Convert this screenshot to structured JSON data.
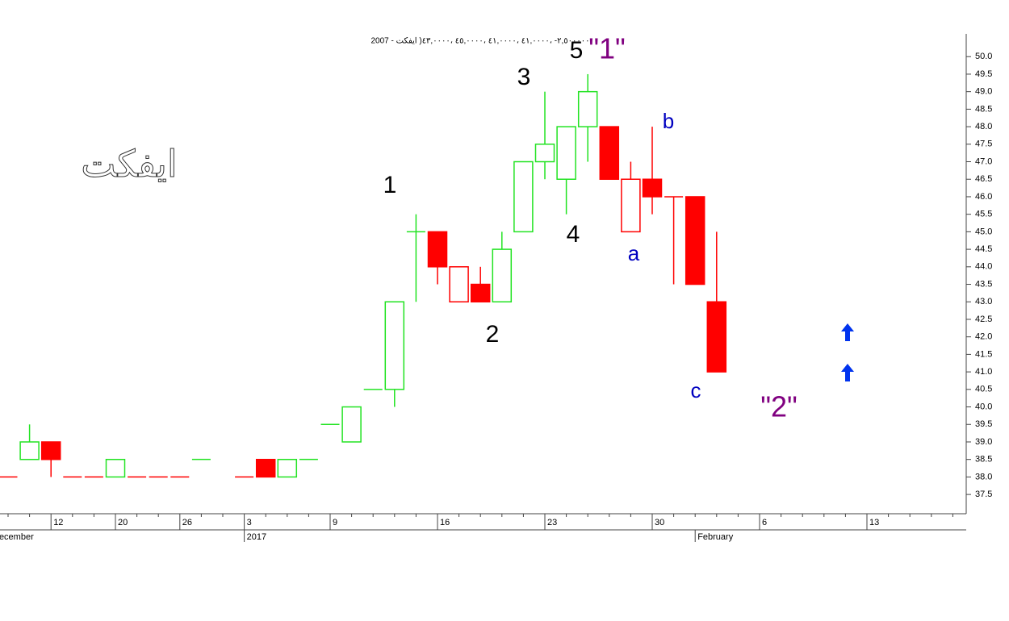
{
  "chart_data": {
    "type": "candlestick",
    "header": "2007 - ٢,٥٠٠٠٠٠- ،٤١,٠٠٠٠ ،٤١,٠٠٠٠ ،٤٥,٠٠٠٠ ،٤٣,٠٠٠٠( ايفكت",
    "logo": "ايفكت",
    "month_left": "December",
    "categories": [
      null,
      null,
      "12",
      null,
      null,
      "20",
      null,
      null,
      "26",
      null,
      null,
      "3",
      null,
      null,
      null,
      "9",
      null,
      null,
      null,
      null,
      "16",
      null,
      null,
      null,
      null,
      "23",
      null,
      null,
      null,
      null,
      "30",
      null,
      null,
      null,
      null,
      "6",
      null,
      null,
      null,
      null,
      "13",
      null,
      null,
      null,
      null
    ],
    "periods": [
      null,
      null,
      null,
      null,
      null,
      null,
      null,
      null,
      null,
      null,
      null,
      "2017",
      null,
      null,
      null,
      null,
      null,
      null,
      null,
      null,
      null,
      null,
      null,
      null,
      null,
      null,
      null,
      null,
      null,
      null,
      null,
      null,
      "February",
      null,
      null,
      null,
      null,
      null,
      null,
      null,
      null,
      null,
      null,
      null,
      null
    ],
    "open": [
      38,
      38.5,
      39,
      38,
      38,
      38,
      38,
      38,
      38,
      38.5,
      null,
      38,
      38.5,
      38,
      38.5,
      39.5,
      39,
      40.5,
      40.5,
      45,
      45,
      43,
      43.5,
      43,
      45,
      47,
      46.5,
      48,
      48,
      45,
      46.5,
      46,
      46,
      43,
      null,
      null,
      null,
      null,
      null,
      null,
      null,
      null,
      null,
      null,
      null
    ],
    "high": [
      38,
      39.5,
      39,
      38,
      38,
      38.5,
      38,
      38,
      38,
      38.5,
      null,
      38,
      38.5,
      38.5,
      38.5,
      39.5,
      40,
      40.5,
      43,
      45.5,
      45,
      44,
      44,
      45,
      47,
      49,
      48,
      49.5,
      48,
      47,
      48,
      46,
      46,
      45,
      null,
      null,
      null,
      null,
      null,
      null,
      null,
      null,
      null,
      null,
      null
    ],
    "low": [
      38,
      38.5,
      38,
      38,
      38,
      38,
      38,
      38,
      38,
      38.5,
      null,
      38,
      38,
      38,
      38.5,
      39.5,
      39,
      40.5,
      40,
      43,
      43.5,
      43,
      43,
      43,
      45,
      46.5,
      45.5,
      47,
      46.5,
      45,
      45.5,
      43.5,
      43.5,
      41,
      null,
      null,
      null,
      null,
      null,
      null,
      null,
      null,
      null,
      null,
      null
    ],
    "close": [
      38,
      39,
      38.5,
      38,
      38,
      38.5,
      38,
      38,
      38,
      38.5,
      null,
      38,
      38,
      38.5,
      38.5,
      39.5,
      40,
      40.5,
      43,
      45,
      44,
      44,
      43,
      44.5,
      47,
      47.5,
      48,
      49,
      46.5,
      46.5,
      46,
      46,
      43.5,
      41,
      null,
      null,
      null,
      null,
      null,
      null,
      null,
      null,
      null,
      null,
      null
    ],
    "colors": [
      "#ff0000",
      "#22e322",
      "#ff0000",
      "#ff0000",
      "#ff0000",
      "#22e322",
      "#ff0000",
      "#ff0000",
      "#ff0000",
      "#22e322",
      null,
      "#ff0000",
      "#ff0000",
      "#22e322",
      "#22e322",
      "#22e322",
      "#22e322",
      "#22e322",
      "#22e322",
      "#22e322",
      "#ff0000",
      "#ff0000",
      "#ff0000",
      "#22e322",
      "#22e322",
      "#22e322",
      "#22e322",
      "#22e322",
      "#ff0000",
      "#ff0000",
      "#ff0000",
      "#ff0000",
      "#ff0000",
      "#ff0000",
      null,
      null,
      null,
      null,
      null,
      null,
      null,
      null,
      null,
      null,
      null
    ],
    "ylim": [
      36.95,
      50.65
    ],
    "yticks": [
      37.5,
      {
        "value": 38,
        "label": "38.0"
      },
      38.5,
      {
        "value": 39,
        "label": "39.0"
      },
      39.5,
      {
        "value": 40,
        "label": "40.0"
      },
      40.5,
      {
        "value": 41,
        "label": "41.0"
      },
      41.5,
      {
        "value": 42,
        "label": "42.0"
      },
      42.5,
      {
        "value": 43,
        "label": "43.0"
      },
      43.5,
      {
        "value": 44,
        "label": "44.0"
      },
      44.5,
      {
        "value": 45,
        "label": "45.0"
      },
      45.5,
      {
        "value": 46,
        "label": "46.0"
      },
      46.5,
      {
        "value": 47,
        "label": "47.0"
      },
      47.5,
      {
        "value": 48,
        "label": "48.0"
      },
      48.5,
      {
        "value": 49,
        "label": "49.0"
      },
      49.5,
      {
        "value": 50,
        "label": "50.0"
      }
    ],
    "annotations": [
      {
        "text": "1",
        "color": "#000000"
      },
      {
        "text": "2",
        "color": "#000000"
      },
      {
        "text": "3",
        "color": "#000000"
      },
      {
        "text": "4",
        "color": "#000000"
      },
      {
        "text": "5",
        "color": "#000000"
      },
      {
        "text": "\"1\"",
        "color": "#800080"
      },
      {
        "text": "a",
        "color": "#0000c0"
      },
      {
        "text": "b",
        "color": "#0000c0"
      },
      {
        "text": "c",
        "color": "#0000c0"
      },
      {
        "text": "\"2\"",
        "color": "#800080"
      }
    ]
  }
}
